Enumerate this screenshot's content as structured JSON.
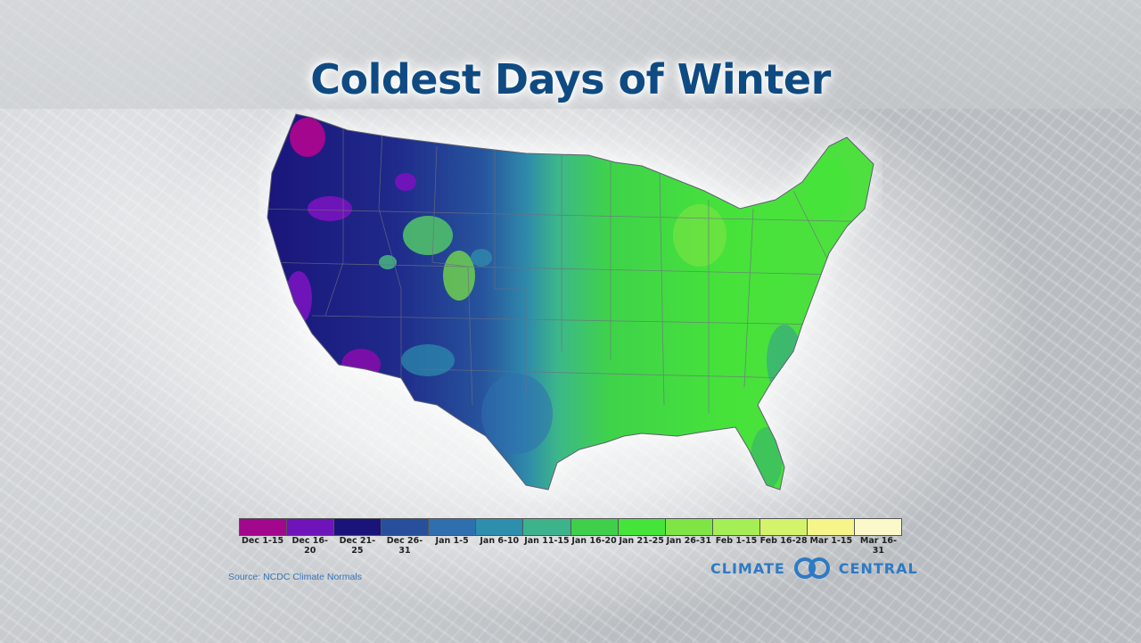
{
  "title": "Coldest Days of Winter",
  "legend": {
    "items": [
      {
        "label": "Dec 1-15",
        "color": "#a2078d"
      },
      {
        "label": "Dec 16-20",
        "color": "#6f14b9"
      },
      {
        "label": "Dec 21-25",
        "color": "#1a147a"
      },
      {
        "label": "Dec 26-31",
        "color": "#274f9b"
      },
      {
        "label": "Jan 1-5",
        "color": "#2f6fb0"
      },
      {
        "label": "Jan 6-10",
        "color": "#2c8fae"
      },
      {
        "label": "Jan 11-15",
        "color": "#3db38c"
      },
      {
        "label": "Jan 16-20",
        "color": "#3fcf4b"
      },
      {
        "label": "Jan 21-25",
        "color": "#44e43a"
      },
      {
        "label": "Jan 26-31",
        "color": "#7fe544"
      },
      {
        "label": "Feb 1-15",
        "color": "#a6ee55"
      },
      {
        "label": "Feb 16-28",
        "color": "#d3f46a"
      },
      {
        "label": "Mar 1-15",
        "color": "#f5f58a"
      },
      {
        "label": "Mar 16-31",
        "color": "#fbf8c9"
      }
    ]
  },
  "source": "Source: NCDC Climate Normals",
  "logo": {
    "word1": "CLIMATE",
    "word2": "CENTRAL",
    "color": "#2e7ac4"
  }
}
